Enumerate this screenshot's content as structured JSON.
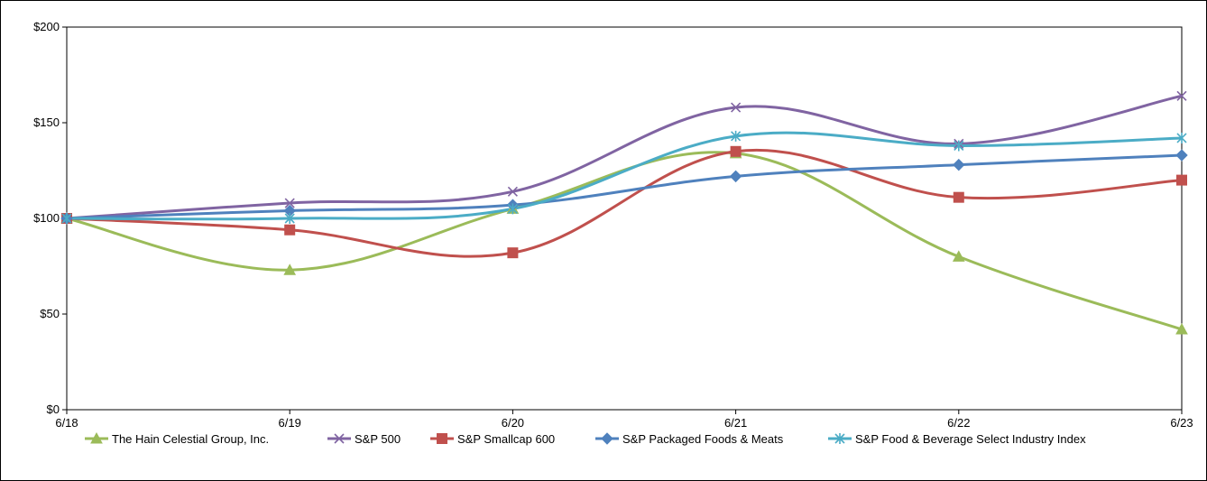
{
  "chart_data": {
    "type": "line",
    "categories": [
      "6/18",
      "6/19",
      "6/20",
      "6/21",
      "6/22",
      "6/23"
    ],
    "ylim": [
      0,
      200
    ],
    "yticks": [
      0,
      50,
      100,
      150,
      200
    ],
    "ytick_labels": [
      "$0",
      "$50",
      "$100",
      "$150",
      "$200"
    ],
    "grid": false,
    "legend_position": "bottom",
    "smooth": true,
    "series": [
      {
        "name": "The Hain Celestial Group, Inc.",
        "color": "#9BBB59",
        "marker": "triangle",
        "values": [
          100,
          73,
          105,
          134,
          80,
          42
        ]
      },
      {
        "name": "S&P 500",
        "color": "#8064A2",
        "marker": "x",
        "values": [
          100,
          108,
          114,
          158,
          139,
          164
        ]
      },
      {
        "name": "S&P Smallcap 600",
        "color": "#C0504D",
        "marker": "square",
        "values": [
          100,
          94,
          82,
          135,
          111,
          120
        ]
      },
      {
        "name": "S&P Packaged Foods & Meats",
        "color": "#4F81BD",
        "marker": "diamond",
        "values": [
          100,
          104,
          107,
          122,
          128,
          133
        ]
      },
      {
        "name": "S&P Food & Beverage Select Industry Index",
        "color": "#4BACC6",
        "marker": "asterisk",
        "values": [
          100,
          100,
          105,
          143,
          138,
          142
        ]
      }
    ]
  }
}
